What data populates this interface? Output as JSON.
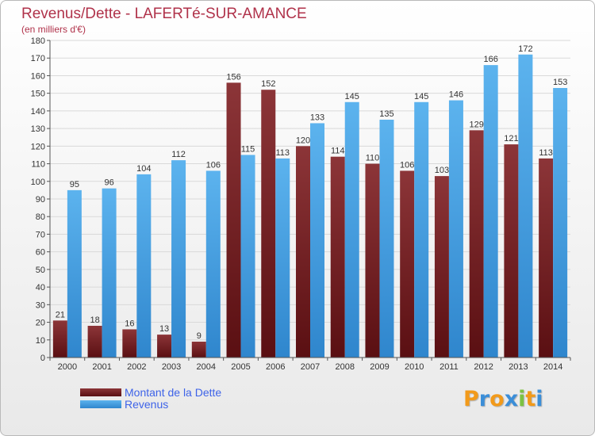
{
  "header": {
    "title": "Revenus/Dette - LAFERTé-SUR-AMANCE",
    "subtitle": "(en milliers d'€)"
  },
  "chart_data": {
    "type": "bar",
    "categories": [
      "2000",
      "2001",
      "2002",
      "2003",
      "2004",
      "2005",
      "2006",
      "2007",
      "2008",
      "2009",
      "2010",
      "2011",
      "2012",
      "2013",
      "2014"
    ],
    "series": [
      {
        "name": "Montant de la Dette",
        "values": [
          21,
          18,
          16,
          13,
          9,
          156,
          152,
          120,
          114,
          110,
          106,
          103,
          129,
          121,
          113
        ],
        "color": "#7d2c2f"
      },
      {
        "name": "Revenus",
        "values": [
          95,
          96,
          104,
          112,
          106,
          115,
          113,
          133,
          145,
          135,
          145,
          146,
          166,
          172,
          153
        ],
        "color": "#4ea6e3"
      }
    ],
    "ylim": [
      0,
      180
    ],
    "yticks": [
      0,
      10,
      20,
      30,
      40,
      50,
      60,
      70,
      80,
      90,
      100,
      110,
      120,
      130,
      140,
      150,
      160,
      170,
      180
    ],
    "grid": true,
    "legend_position": "bottom-left",
    "colors": {
      "debt_top": "#8c3538",
      "debt_bottom": "#5a0f12",
      "revenue_top": "#5cb3ee",
      "revenue_bottom": "#2f86cd",
      "axis": "#555555",
      "grid": "#d9d9d9"
    }
  },
  "legend": [
    {
      "label": "Montant de la Dette",
      "color": "#6b1d20"
    },
    {
      "label": "Revenus",
      "color": "#4ea6e3"
    }
  ],
  "logo": {
    "letters": [
      "P",
      "r",
      "o",
      "x",
      "i",
      "t",
      "i"
    ],
    "colors": [
      "#f29a1a",
      "#3b8ed8",
      "#f29a1a",
      "#3b8ed8",
      "#7cc242",
      "#f29a1a",
      "#3b8ed8"
    ]
  }
}
